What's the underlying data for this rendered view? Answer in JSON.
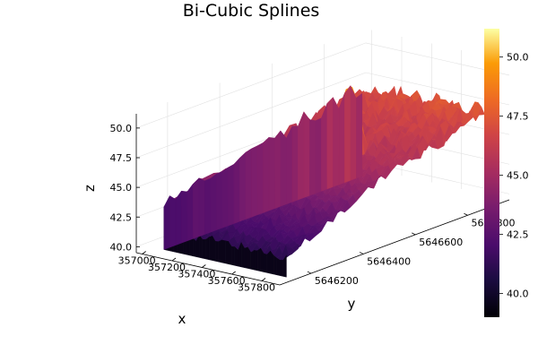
{
  "chart_data": {
    "type": "surface",
    "title": "Bi-Cubic Splines",
    "xlabel": "x",
    "ylabel": "y",
    "zlabel": "z",
    "x_ticks": [
      357000,
      357200,
      357400,
      357600,
      357800
    ],
    "x_tick_labels": [
      "357000",
      "357200",
      "357400",
      "357600",
      "357800"
    ],
    "y_ticks": [
      5646200,
      5646400,
      5646600,
      5646800
    ],
    "y_tick_labels": [
      "5646200",
      "5646400",
      "5646600",
      "5646800"
    ],
    "z_ticks": [
      40.0,
      42.5,
      45.0,
      47.5,
      50.0
    ],
    "z_tick_labels": [
      "40.0",
      "42.5",
      "45.0",
      "47.5",
      "50.0"
    ],
    "xlim": [
      356960,
      357920
    ],
    "ylim": [
      5646080,
      5646960
    ],
    "zlim": [
      39.5,
      51.2
    ],
    "colorbar": {
      "colormap": "inferno",
      "range": [
        39.0,
        51.2
      ],
      "ticks": [
        40.0,
        42.5,
        45.0,
        47.5,
        50.0
      ],
      "tick_labels": [
        "40.0",
        "42.5",
        "45.0",
        "47.5",
        "50.0"
      ]
    },
    "surface_description_points": [
      {
        "x": 357000,
        "y": 5646850,
        "z": 46.5
      },
      {
        "x": 357200,
        "y": 5646850,
        "z": 47.5
      },
      {
        "x": 357500,
        "y": 5646850,
        "z": 48.5
      },
      {
        "x": 357800,
        "y": 5646850,
        "z": 47.0
      },
      {
        "x": 357000,
        "y": 5646300,
        "z": 44.8
      },
      {
        "x": 357300,
        "y": 5646300,
        "z": 41.2
      },
      {
        "x": 357560,
        "y": 5646550,
        "z": 50.9
      },
      {
        "x": 357480,
        "y": 5646450,
        "z": 45.0
      },
      {
        "x": 357800,
        "y": 5646300,
        "z": 41.5
      }
    ],
    "grid": true,
    "legend": "none"
  }
}
